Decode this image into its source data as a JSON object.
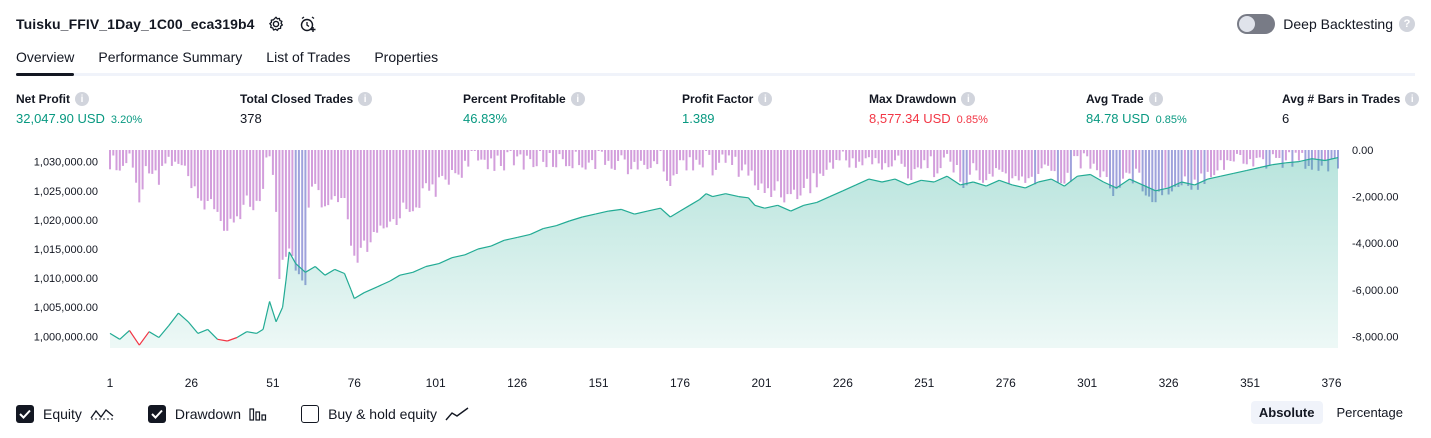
{
  "header": {
    "title": "Tuisku_FFIV_1Day_1C00_eca319b4",
    "deep_backtesting_label": "Deep Backtesting",
    "deep_backtesting_enabled": false
  },
  "tabs": [
    {
      "label": "Overview",
      "active": true
    },
    {
      "label": "Performance Summary",
      "active": false
    },
    {
      "label": "List of Trades",
      "active": false
    },
    {
      "label": "Properties",
      "active": false
    }
  ],
  "metrics": [
    {
      "label": "Net Profit",
      "value": "32,047.90 USD",
      "pct": "3.20%",
      "color": "#089981"
    },
    {
      "label": "Total Closed Trades",
      "value": "378",
      "pct": "",
      "color": "#131722"
    },
    {
      "label": "Percent Profitable",
      "value": "46.83%",
      "pct": "",
      "color": "#089981"
    },
    {
      "label": "Profit Factor",
      "value": "1.389",
      "pct": "",
      "color": "#089981"
    },
    {
      "label": "Max Drawdown",
      "value": "8,577.34 USD",
      "pct": "0.85%",
      "color": "#f23645"
    },
    {
      "label": "Avg Trade",
      "value": "84.78 USD",
      "pct": "0.85%",
      "color": "#089981"
    },
    {
      "label": "Avg # Bars in Trades",
      "value": "6",
      "pct": "",
      "color": "#131722"
    }
  ],
  "legend": {
    "equity": {
      "label": "Equity",
      "checked": true
    },
    "drawdown": {
      "label": "Drawdown",
      "checked": true
    },
    "buy_hold": {
      "label": "Buy & hold equity",
      "checked": false
    }
  },
  "mode": {
    "absolute": "Absolute",
    "percentage": "Percentage",
    "selected": "absolute"
  },
  "chart_data": {
    "type": "area",
    "x_ticks": [
      "1",
      "26",
      "51",
      "76",
      "101",
      "126",
      "151",
      "176",
      "201",
      "226",
      "251",
      "276",
      "301",
      "326",
      "351",
      "376"
    ],
    "left_axis_ticks": [
      "1,030,000.00",
      "1,025,000.00",
      "1,020,000.00",
      "1,015,000.00",
      "1,010,000.00",
      "1,005,000.00",
      "1,000,000.00"
    ],
    "right_axis_ticks": [
      "0.00",
      "-2,000.00",
      "-4,000.00",
      "-6,000.00",
      "-8,000.00"
    ],
    "left_ylim": [
      998000,
      1032000
    ],
    "right_ylim": [
      -8500,
      0
    ],
    "trade_count": 378,
    "colors": {
      "equity_line": "#22ab94",
      "equity_loss": "#f23645",
      "drawdown": "#ce93d8",
      "drawdown_overlap": "#9598d8"
    },
    "equity": [
      [
        1,
        1000500
      ],
      [
        4,
        999500
      ],
      [
        7,
        1001000
      ],
      [
        10,
        998500
      ],
      [
        13,
        1000800
      ],
      [
        16,
        999800
      ],
      [
        19,
        1001800
      ],
      [
        22,
        1004000
      ],
      [
        25,
        1002500
      ],
      [
        28,
        1000500
      ],
      [
        31,
        1001200
      ],
      [
        34,
        999500
      ],
      [
        37,
        999200
      ],
      [
        40,
        999800
      ],
      [
        43,
        1000800
      ],
      [
        46,
        1000500
      ],
      [
        48,
        1001200
      ],
      [
        50,
        1006000
      ],
      [
        52,
        1002500
      ],
      [
        54,
        1005000
      ],
      [
        55,
        1009500
      ],
      [
        56,
        1014500
      ],
      [
        58,
        1012500
      ],
      [
        61,
        1011000
      ],
      [
        64,
        1012000
      ],
      [
        67,
        1010500
      ],
      [
        70,
        1011500
      ],
      [
        73,
        1010800
      ],
      [
        75,
        1008000
      ],
      [
        76,
        1006500
      ],
      [
        79,
        1007500
      ],
      [
        83,
        1008500
      ],
      [
        87,
        1009500
      ],
      [
        90,
        1010500
      ],
      [
        94,
        1011000
      ],
      [
        98,
        1012000
      ],
      [
        102,
        1012500
      ],
      [
        106,
        1013500
      ],
      [
        110,
        1014000
      ],
      [
        114,
        1015000
      ],
      [
        118,
        1015500
      ],
      [
        122,
        1016500
      ],
      [
        126,
        1017000
      ],
      [
        130,
        1017500
      ],
      [
        134,
        1018500
      ],
      [
        138,
        1019000
      ],
      [
        142,
        1019800
      ],
      [
        146,
        1020500
      ],
      [
        150,
        1021000
      ],
      [
        154,
        1021500
      ],
      [
        158,
        1021800
      ],
      [
        162,
        1021000
      ],
      [
        166,
        1021500
      ],
      [
        170,
        1022000
      ],
      [
        173,
        1020500
      ],
      [
        176,
        1021500
      ],
      [
        179,
        1022500
      ],
      [
        182,
        1023500
      ],
      [
        184,
        1024500
      ],
      [
        186,
        1024000
      ],
      [
        190,
        1024500
      ],
      [
        194,
        1024000
      ],
      [
        197,
        1023800
      ],
      [
        199,
        1022500
      ],
      [
        202,
        1022000
      ],
      [
        206,
        1022500
      ],
      [
        210,
        1021500
      ],
      [
        214,
        1022500
      ],
      [
        218,
        1023000
      ],
      [
        222,
        1024000
      ],
      [
        226,
        1025000
      ],
      [
        230,
        1026000
      ],
      [
        234,
        1027000
      ],
      [
        238,
        1026500
      ],
      [
        242,
        1027000
      ],
      [
        246,
        1026000
      ],
      [
        250,
        1026800
      ],
      [
        254,
        1026500
      ],
      [
        258,
        1027500
      ],
      [
        262,
        1026000
      ],
      [
        266,
        1026500
      ],
      [
        270,
        1025800
      ],
      [
        274,
        1026800
      ],
      [
        278,
        1026000
      ],
      [
        282,
        1025500
      ],
      [
        286,
        1026500
      ],
      [
        290,
        1027000
      ],
      [
        294,
        1025800
      ],
      [
        298,
        1027500
      ],
      [
        302,
        1027800
      ],
      [
        306,
        1026500
      ],
      [
        310,
        1025500
      ],
      [
        314,
        1027000
      ],
      [
        318,
        1026000
      ],
      [
        322,
        1025000
      ],
      [
        326,
        1025500
      ],
      [
        330,
        1026500
      ],
      [
        334,
        1026000
      ],
      [
        338,
        1027000
      ],
      [
        342,
        1027500
      ],
      [
        346,
        1028000
      ],
      [
        350,
        1028500
      ],
      [
        354,
        1029000
      ],
      [
        358,
        1029500
      ],
      [
        362,
        1029800
      ],
      [
        366,
        1030000
      ],
      [
        370,
        1030500
      ],
      [
        374,
        1030200
      ],
      [
        378,
        1030700
      ]
    ]
  }
}
